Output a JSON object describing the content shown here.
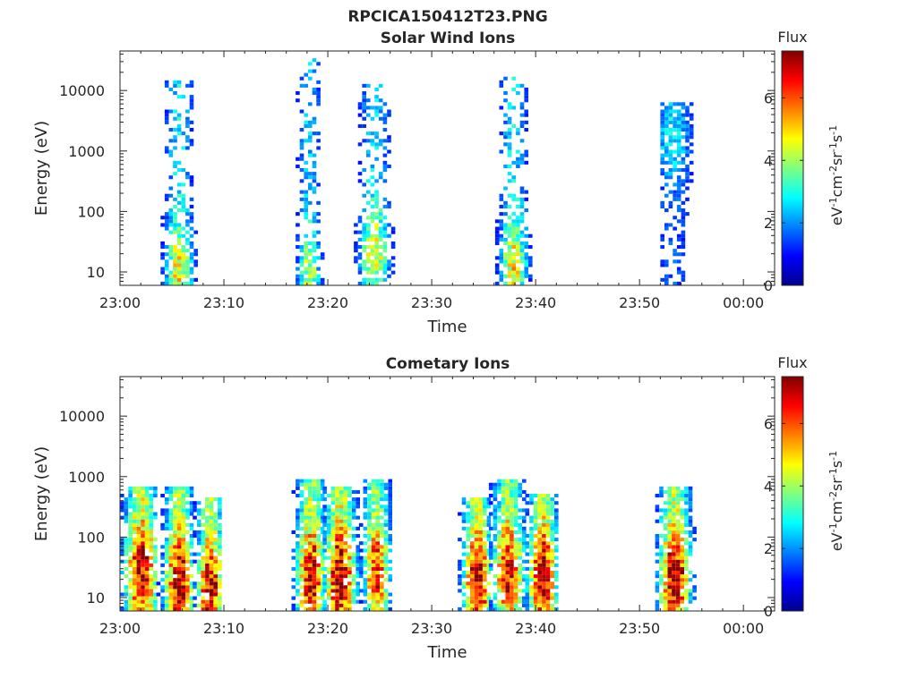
{
  "figure_title": "RPCICA150412T23.PNG",
  "chart_data": [
    {
      "type": "heatmap",
      "title": "Solar Wind Ions",
      "xlabel": "Time",
      "ylabel": "Energy (eV)",
      "x_ticks": [
        "23:00",
        "23:10",
        "23:20",
        "23:30",
        "23:40",
        "23:50",
        "00:00"
      ],
      "x_range_minutes": [
        0,
        63
      ],
      "y_scale": "log",
      "y_ticks": [
        "10",
        "100",
        "1000",
        "10000"
      ],
      "y_range": [
        6,
        45000
      ],
      "colorbar": {
        "label": "Flux",
        "units": "eV-1cm-2sr-1s-1",
        "ticks": [
          "0",
          "2",
          "4",
          "6"
        ],
        "range": [
          0,
          7.5
        ],
        "colormap": "jet"
      },
      "bursts": [
        {
          "t_start": 1.5,
          "t_end": 10.0,
          "t_peak": 5.5,
          "width": 1.0,
          "e_peak_log": 1.0,
          "max_flux": 4.8,
          "e_top_log": 4.2
        },
        {
          "t_start": 16.5,
          "t_end": 19.5,
          "t_peak": 18.0,
          "width": 0.8,
          "e_peak_log": 0.9,
          "max_flux": 4.4,
          "e_top_log": 4.5
        },
        {
          "t_start": 20.5,
          "t_end": 26.5,
          "t_peak": 24.3,
          "width": 1.1,
          "e_peak_log": 1.3,
          "max_flux": 4.6,
          "e_top_log": 4.1
        },
        {
          "t_start": 32.5,
          "t_end": 41.5,
          "t_peak": 37.7,
          "width": 1.0,
          "e_peak_log": 1.1,
          "max_flux": 4.7,
          "e_top_log": 4.2
        },
        {
          "t_start": 52.0,
          "t_end": 55.0,
          "t_peak": 53.0,
          "width": 1.5,
          "e_peak_log": 3.2,
          "max_flux": 2.8,
          "e_top_log": 3.8
        }
      ]
    },
    {
      "type": "heatmap",
      "title": "Cometary Ions",
      "xlabel": "Time",
      "ylabel": "Energy (eV)",
      "x_ticks": [
        "23:00",
        "23:10",
        "23:20",
        "23:30",
        "23:40",
        "23:50",
        "00:00"
      ],
      "x_range_minutes": [
        0,
        63
      ],
      "y_scale": "log",
      "y_ticks": [
        "10",
        "100",
        "1000",
        "10000"
      ],
      "y_range": [
        6,
        45000
      ],
      "colorbar": {
        "label": "Flux",
        "units": "eV-1cm-2sr-1s-1",
        "ticks": [
          "0",
          "2",
          "4",
          "6"
        ],
        "range": [
          0,
          7.5
        ],
        "colormap": "jet"
      },
      "bursts": [
        {
          "t_start": 0.0,
          "t_end": 3.5,
          "t_peak": 1.9,
          "width": 1.2,
          "e_peak_log": 1.4,
          "max_flux": 7.3,
          "e_top_log": 2.8
        },
        {
          "t_start": 3.5,
          "t_end": 7.0,
          "t_peak": 5.5,
          "width": 1.0,
          "e_peak_log": 1.2,
          "max_flux": 7.4,
          "e_top_log": 2.8
        },
        {
          "t_start": 7.0,
          "t_end": 9.5,
          "t_peak": 8.5,
          "width": 0.9,
          "e_peak_log": 1.1,
          "max_flux": 7.4,
          "e_top_log": 2.6
        },
        {
          "t_start": 16.5,
          "t_end": 19.5,
          "t_peak": 18.2,
          "width": 1.0,
          "e_peak_log": 1.3,
          "max_flux": 7.2,
          "e_top_log": 2.9
        },
        {
          "t_start": 19.5,
          "t_end": 23.0,
          "t_peak": 21.0,
          "width": 1.1,
          "e_peak_log": 1.3,
          "max_flux": 7.5,
          "e_top_log": 2.8
        },
        {
          "t_start": 23.0,
          "t_end": 26.0,
          "t_peak": 24.5,
          "width": 0.9,
          "e_peak_log": 1.4,
          "max_flux": 6.6,
          "e_top_log": 2.9
        },
        {
          "t_start": 32.5,
          "t_end": 35.5,
          "t_peak": 34.2,
          "width": 1.0,
          "e_peak_log": 1.2,
          "max_flux": 7.5,
          "e_top_log": 2.6
        },
        {
          "t_start": 35.5,
          "t_end": 39.0,
          "t_peak": 37.2,
          "width": 1.1,
          "e_peak_log": 1.4,
          "max_flux": 6.8,
          "e_top_log": 2.9
        },
        {
          "t_start": 39.0,
          "t_end": 42.0,
          "t_peak": 40.5,
          "width": 1.0,
          "e_peak_log": 1.3,
          "max_flux": 7.5,
          "e_top_log": 2.7
        },
        {
          "t_start": 51.5,
          "t_end": 55.5,
          "t_peak": 53.2,
          "width": 1.1,
          "e_peak_log": 1.3,
          "max_flux": 7.4,
          "e_top_log": 2.8
        }
      ]
    }
  ]
}
